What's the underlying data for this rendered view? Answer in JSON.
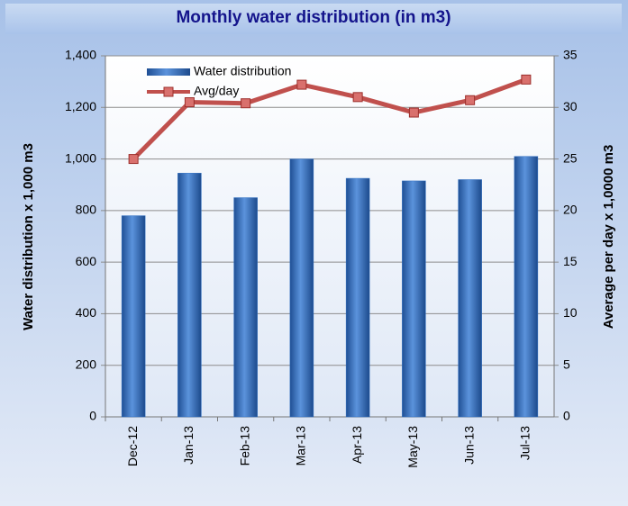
{
  "chart_data": {
    "type": "bar-line",
    "title": "Monthly water distribution (in m3)",
    "y_label": "Water distribution x 1,000 m3",
    "y2_label": "Average per day x 1,0000 m3",
    "categories": [
      "Dec-12",
      "Jan-13",
      "Feb-13",
      "Mar-13",
      "Apr-13",
      "May-13",
      "Jun-13",
      "Jul-13"
    ],
    "series": [
      {
        "name": "Water distribution",
        "type": "bar",
        "color": "#2f6fc2",
        "values": [
          780,
          945,
          850,
          1000,
          925,
          915,
          920,
          1010
        ]
      },
      {
        "name": "Avg/day",
        "type": "line",
        "axis": "y2",
        "color": "#c0504d",
        "values": [
          25.0,
          30.5,
          30.4,
          32.2,
          31.0,
          29.5,
          30.7,
          32.7
        ]
      }
    ],
    "ylim": [
      0,
      1400
    ],
    "yticks": [
      0,
      200,
      400,
      600,
      800,
      {
        "value": 1000,
        "label": "1,000"
      },
      {
        "value": 1200,
        "label": "1,200"
      },
      {
        "value": 1400,
        "label": "1,400"
      }
    ],
    "y2lim": [
      0,
      35
    ],
    "y2ticks": [
      0,
      5,
      10,
      15,
      20,
      25,
      30,
      35
    ],
    "grid": true,
    "legend": "top-left"
  }
}
